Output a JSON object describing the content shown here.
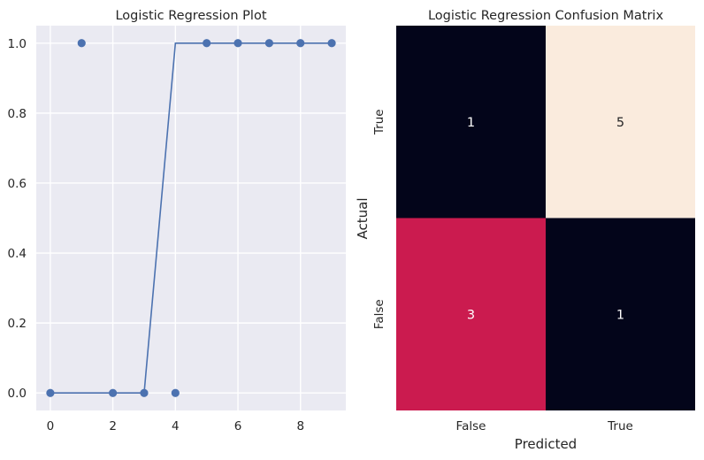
{
  "chart_data": [
    {
      "type": "scatter",
      "title": "Logistic Regression Plot",
      "xlabel": "",
      "ylabel": "",
      "xlim": [
        -0.45,
        9.45
      ],
      "ylim": [
        -0.05,
        1.05
      ],
      "grid": true,
      "x_ticks": [
        "0",
        "2",
        "4",
        "6",
        "8"
      ],
      "y_ticks": [
        "0.0",
        "0.2",
        "0.4",
        "0.6",
        "0.8",
        "1.0"
      ],
      "x_tick_values": [
        0,
        2,
        4,
        6,
        8
      ],
      "y_tick_values": [
        0,
        0.2,
        0.4,
        0.6,
        0.8,
        1.0
      ],
      "series": [
        {
          "kind": "points",
          "x": [
            0,
            1,
            2,
            3,
            4,
            5,
            6,
            7,
            8,
            9
          ],
          "y": [
            0,
            1,
            0,
            0,
            0,
            1,
            1,
            1,
            1,
            1
          ]
        },
        {
          "kind": "line",
          "x": [
            0,
            1,
            2,
            3,
            4,
            5,
            6,
            7,
            8,
            9
          ],
          "y": [
            0,
            0,
            0,
            0,
            1,
            1,
            1,
            1,
            1,
            1
          ]
        }
      ],
      "colors": {
        "series": "#4c72b0",
        "background": "#eaeaf2",
        "grid": "#ffffff"
      }
    },
    {
      "type": "heatmap",
      "title": "Logistic Regression Confusion Matrix",
      "xlabel": "Predicted",
      "ylabel": "Actual",
      "x_categories": [
        "False",
        "True"
      ],
      "y_categories": [
        "True",
        "False"
      ],
      "values": [
        [
          1,
          5
        ],
        [
          3,
          1
        ]
      ],
      "colors": {
        "1": "#03051a",
        "3": "#cb1b4f",
        "5": "#faebdd"
      }
    }
  ]
}
